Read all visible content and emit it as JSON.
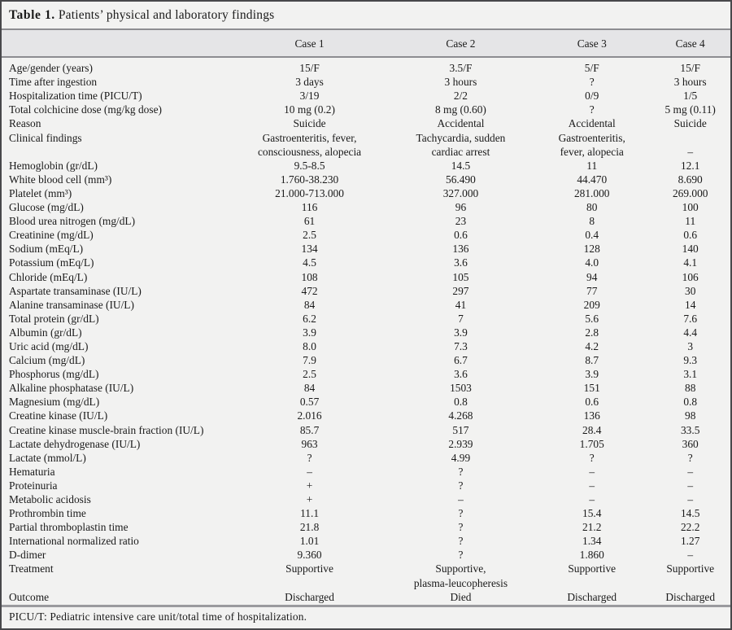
{
  "table": {
    "title_bold": "Table 1.",
    "title_caption": " Patients’ physical and laboratory findings",
    "columns": [
      "",
      "Case 1",
      "Case 2",
      "Case 3",
      "Case 4"
    ],
    "rows": [
      {
        "label": "Age/gender (years)",
        "values": [
          "15/F",
          "3.5/F",
          "5/F",
          "15/F"
        ]
      },
      {
        "label": "Time after ingestion",
        "values": [
          "3 days",
          "3 hours",
          "?",
          "3 hours"
        ]
      },
      {
        "label": "Hospitalization time (PICU/T)",
        "values": [
          "3/19",
          "2/2",
          "0/9",
          "1/5"
        ]
      },
      {
        "label": "Total colchicine dose (mg/kg dose)",
        "values": [
          "10 mg (0.2)",
          "8 mg (0.60)",
          "?",
          "5 mg (0.11)"
        ]
      },
      {
        "label": "Reason",
        "values": [
          "Suicide",
          "Accidental",
          "Accidental",
          "Suicide"
        ]
      },
      {
        "label": "Clinical findings",
        "values": [
          "Gastroenteritis, fever,\nconsciousness, alopecia",
          "Tachycardia, sudden\ncardiac arrest",
          "Gastroenteritis,\nfever, alopecia",
          "\n–"
        ]
      },
      {
        "label": "Hemoglobin (gr/dL)",
        "values": [
          "9.5-8.5",
          "14.5",
          "11",
          "12.1"
        ]
      },
      {
        "label": "White blood cell (mm³)",
        "values": [
          "1.760-38.230",
          "56.490",
          "44.470",
          "8.690"
        ]
      },
      {
        "label": "Platelet (mm³)",
        "values": [
          "21.000-713.000",
          "327.000",
          "281.000",
          "269.000"
        ]
      },
      {
        "label": "Glucose (mg/dL)",
        "values": [
          "116",
          "96",
          "80",
          "100"
        ]
      },
      {
        "label": "Blood urea nitrogen (mg/dL)",
        "values": [
          "61",
          "23",
          "8",
          "11"
        ]
      },
      {
        "label": "Creatinine (mg/dL)",
        "values": [
          "2.5",
          "0.6",
          "0.4",
          "0.6"
        ]
      },
      {
        "label": "Sodium (mEq/L)",
        "values": [
          "134",
          "136",
          "128",
          "140"
        ]
      },
      {
        "label": "Potassium (mEq/L)",
        "values": [
          "4.5",
          "3.6",
          "4.0",
          "4.1"
        ]
      },
      {
        "label": "Chloride (mEq/L)",
        "values": [
          "108",
          "105",
          "94",
          "106"
        ]
      },
      {
        "label": "Aspartate transaminase (IU/L)",
        "values": [
          "472",
          "297",
          "77",
          "30"
        ]
      },
      {
        "label": "Alanine transaminase (IU/L)",
        "values": [
          "84",
          "41",
          "209",
          "14"
        ]
      },
      {
        "label": "Total protein (gr/dL)",
        "values": [
          "6.2",
          "7",
          "5.6",
          "7.6"
        ]
      },
      {
        "label": "Albumin (gr/dL)",
        "values": [
          "3.9",
          "3.9",
          "2.8",
          "4.4"
        ]
      },
      {
        "label": "Uric acid (mg/dL)",
        "values": [
          "8.0",
          "7.3",
          "4.2",
          "3"
        ]
      },
      {
        "label": "Calcium (mg/dL)",
        "values": [
          "7.9",
          "6.7",
          "8.7",
          "9.3"
        ]
      },
      {
        "label": "Phosphorus (mg/dL)",
        "values": [
          "2.5",
          "3.6",
          "3.9",
          "3.1"
        ]
      },
      {
        "label": "Alkaline phosphatase (IU/L)",
        "values": [
          "84",
          "1503",
          "151",
          "88"
        ]
      },
      {
        "label": "Magnesium (mg/dL)",
        "values": [
          "0.57",
          "0.8",
          "0.6",
          "0.8"
        ]
      },
      {
        "label": "Creatine kinase (IU/L)",
        "values": [
          "2.016",
          "4.268",
          "136",
          "98"
        ]
      },
      {
        "label": "Creatine kinase muscle-brain fraction (IU/L)",
        "values": [
          "85.7",
          "517",
          "28.4",
          "33.5"
        ]
      },
      {
        "label": "Lactate dehydrogenase (IU/L)",
        "values": [
          "963",
          "2.939",
          "1.705",
          "360"
        ]
      },
      {
        "label": "Lactate (mmol/L)",
        "values": [
          "?",
          "4.99",
          "?",
          "?"
        ]
      },
      {
        "label": "Hematuria",
        "values": [
          "–",
          "?",
          "–",
          "–"
        ]
      },
      {
        "label": "Proteinuria",
        "values": [
          "+",
          "?",
          "–",
          "–"
        ]
      },
      {
        "label": "Metabolic acidosis",
        "values": [
          "+",
          "–",
          "–",
          "–"
        ]
      },
      {
        "label": "Prothrombin time",
        "values": [
          "11.1",
          "?",
          "15.4",
          "14.5"
        ]
      },
      {
        "label": "Partial thromboplastin time",
        "values": [
          "21.8",
          "?",
          "21.2",
          "22.2"
        ]
      },
      {
        "label": "International normalized ratio",
        "values": [
          "1.01",
          "?",
          "1.34",
          "1.27"
        ]
      },
      {
        "label": "D-dimer",
        "values": [
          "9.360",
          "?",
          "1.860",
          "–"
        ]
      },
      {
        "label": "Treatment",
        "values": [
          "Supportive",
          "Supportive,\nplasma-leucopheresis",
          "Supportive",
          "Supportive"
        ]
      },
      {
        "label": "Outcome",
        "values": [
          "Discharged",
          "Died",
          "Discharged",
          "Discharged"
        ]
      }
    ],
    "footnote": "PICU/T: Pediatric intensive care unit/total time of hospitalization."
  },
  "colors": {
    "background": "#f2f2f1",
    "header_band": "#e5e5e7",
    "rule": "#8d8d91",
    "outer_border": "#48484b",
    "text": "#1a1a1a"
  }
}
